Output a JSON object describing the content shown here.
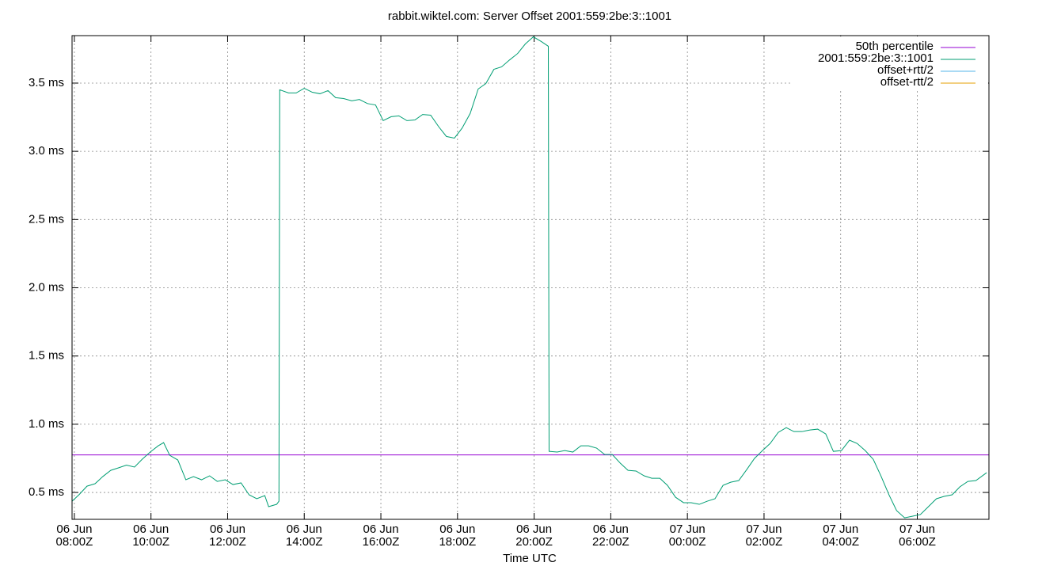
{
  "chart_data": {
    "type": "line",
    "title": "rabbit.wiktel.com: Server Offset 2001:559:2be:3::1001",
    "x_label": "Time UTC",
    "grid": true,
    "legend": "top-right",
    "xlim": [
      7.94,
      31.87
    ],
    "ylim": [
      0.303,
      3.848
    ],
    "xticks": [
      {
        "value": 8,
        "label": [
          "06 Jun",
          "08:00Z"
        ]
      },
      {
        "value": 10,
        "label": [
          "06 Jun",
          "10:00Z"
        ]
      },
      {
        "value": 12,
        "label": [
          "06 Jun",
          "12:00Z"
        ]
      },
      {
        "value": 14,
        "label": [
          "06 Jun",
          "14:00Z"
        ]
      },
      {
        "value": 16,
        "label": [
          "06 Jun",
          "16:00Z"
        ]
      },
      {
        "value": 18,
        "label": [
          "06 Jun",
          "18:00Z"
        ]
      },
      {
        "value": 20,
        "label": [
          "06 Jun",
          "20:00Z"
        ]
      },
      {
        "value": 22,
        "label": [
          "06 Jun",
          "22:00Z"
        ]
      },
      {
        "value": 24,
        "label": [
          "07 Jun",
          "00:00Z"
        ]
      },
      {
        "value": 26,
        "label": [
          "07 Jun",
          "02:00Z"
        ]
      },
      {
        "value": 28,
        "label": [
          "07 Jun",
          "04:00Z"
        ]
      },
      {
        "value": 30,
        "label": [
          "07 Jun",
          "06:00Z"
        ]
      }
    ],
    "yticks": [
      {
        "value": 0.5,
        "label": "0.5 ms"
      },
      {
        "value": 1.0,
        "label": "1.0 ms"
      },
      {
        "value": 1.5,
        "label": "1.5 ms"
      },
      {
        "value": 2.0,
        "label": "2.0 ms"
      },
      {
        "value": 2.5,
        "label": "2.5 ms"
      },
      {
        "value": 3.0,
        "label": "3.0 ms"
      },
      {
        "value": 3.5,
        "label": "3.5 ms"
      }
    ],
    "series": [
      {
        "name": "50th percentile",
        "color": "#9400d3",
        "value": 0.775
      },
      {
        "name": "2001:559:2be:3::1001",
        "color": "#009e73",
        "x": [
          7.94,
          8.12,
          8.33,
          8.54,
          8.74,
          8.95,
          9.15,
          9.36,
          9.57,
          9.77,
          9.98,
          10.19,
          10.33,
          10.49,
          10.7,
          10.91,
          11.11,
          11.32,
          11.53,
          11.73,
          11.94,
          12.14,
          12.35,
          12.56,
          12.76,
          12.97,
          13.07,
          13.28,
          13.34,
          13.36,
          13.59,
          13.79,
          14.0,
          14.21,
          14.41,
          14.62,
          14.82,
          15.03,
          15.24,
          15.44,
          15.65,
          15.86,
          16.06,
          16.27,
          16.47,
          16.68,
          16.89,
          17.09,
          17.3,
          17.51,
          17.71,
          17.92,
          18.12,
          18.33,
          18.54,
          18.74,
          18.95,
          19.15,
          19.36,
          19.57,
          19.77,
          19.98,
          20.19,
          20.37,
          20.39,
          20.6,
          20.8,
          21.01,
          21.22,
          21.42,
          21.63,
          21.84,
          22.04,
          22.25,
          22.45,
          22.66,
          22.87,
          23.07,
          23.28,
          23.48,
          23.69,
          23.9,
          24.1,
          24.31,
          24.52,
          24.72,
          24.93,
          25.13,
          25.34,
          25.55,
          25.75,
          25.96,
          26.16,
          26.37,
          26.58,
          26.78,
          26.99,
          27.2,
          27.4,
          27.61,
          27.81,
          28.02,
          28.23,
          28.43,
          28.64,
          28.85,
          29.05,
          29.26,
          29.46,
          29.67,
          29.88,
          30.08,
          30.29,
          30.5,
          30.7,
          30.91,
          31.11,
          31.32,
          31.53,
          31.81
        ],
        "values": [
          0.436,
          0.483,
          0.546,
          0.564,
          0.616,
          0.662,
          0.68,
          0.7,
          0.686,
          0.743,
          0.796,
          0.842,
          0.865,
          0.772,
          0.738,
          0.593,
          0.616,
          0.593,
          0.622,
          0.581,
          0.593,
          0.558,
          0.57,
          0.483,
          0.454,
          0.477,
          0.396,
          0.413,
          0.436,
          3.451,
          3.428,
          3.428,
          3.462,
          3.433,
          3.422,
          3.445,
          3.393,
          3.387,
          3.37,
          3.38,
          3.35,
          3.34,
          3.225,
          3.254,
          3.26,
          3.225,
          3.23,
          3.27,
          3.265,
          3.18,
          3.109,
          3.097,
          3.17,
          3.277,
          3.457,
          3.497,
          3.601,
          3.619,
          3.67,
          3.717,
          3.787,
          3.839,
          3.804,
          3.77,
          0.801,
          0.796,
          0.807,
          0.796,
          0.842,
          0.842,
          0.825,
          0.778,
          0.778,
          0.714,
          0.662,
          0.657,
          0.622,
          0.604,
          0.604,
          0.552,
          0.465,
          0.425,
          0.425,
          0.413,
          0.436,
          0.454,
          0.552,
          0.575,
          0.587,
          0.668,
          0.749,
          0.807,
          0.859,
          0.94,
          0.975,
          0.946,
          0.946,
          0.958,
          0.964,
          0.929,
          0.801,
          0.807,
          0.883,
          0.859,
          0.807,
          0.743,
          0.622,
          0.483,
          0.367,
          0.314,
          0.326,
          0.338,
          0.396,
          0.454,
          0.471,
          0.483,
          0.541,
          0.581,
          0.587,
          0.645
        ]
      },
      {
        "name": "offset+rtt/2",
        "color": "#56b4e9"
      },
      {
        "name": "offset-rtt/2",
        "color": "#e69f00"
      }
    ]
  }
}
